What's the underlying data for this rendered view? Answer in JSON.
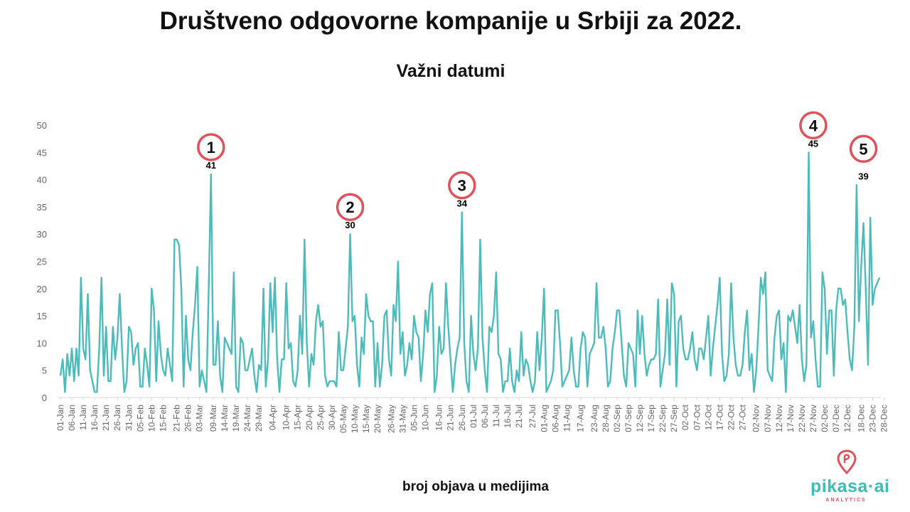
{
  "title": "Društveno odgovorne kompanije u Srbiji za 2022.",
  "subtitle": "Važni datumi",
  "x_caption": "broj objava u medijima",
  "logo": {
    "word": "pikasa·ai",
    "sub": "ANALYTICS",
    "icon": "pikasa-logo-icon"
  },
  "colors": {
    "line": "#4bbcba",
    "marker": "#e0525a",
    "axis": "#d9d9d9",
    "tick_text": "#666666",
    "label_text": "#000000"
  },
  "chart_data": {
    "type": "line",
    "title": "Društveno odgovorne kompanije u Srbiji za 2022.",
    "subtitle": "Važni datumi",
    "xlabel": "broj objava u medijima",
    "ylabel": "",
    "ylim": [
      0,
      50
    ],
    "yticks": [
      0,
      5,
      10,
      15,
      20,
      25,
      30,
      35,
      40,
      45,
      50
    ],
    "grid": false,
    "x_start": "01-Jan",
    "x_end": "31-Dec",
    "x_ticks": [
      "01-Jan",
      "06-Jan",
      "11-Jan",
      "16-Jan",
      "21-Jan",
      "26-Jan",
      "31-Jan",
      "05-Feb",
      "10-Feb",
      "15-Feb",
      "21-Feb",
      "26-Feb",
      "03-Mar",
      "09-Mar",
      "14-Mar",
      "19-Mar",
      "24-Mar",
      "29-Mar",
      "04-Apr",
      "10-Apr",
      "15-Apr",
      "20-Apr",
      "25-Apr",
      "30-Apr",
      "05-May",
      "10-May",
      "15-May",
      "20-May",
      "26-May",
      "31-May",
      "05-Jun",
      "10-Jun",
      "16-Jun",
      "21-Jun",
      "26-Jun",
      "01-Jul",
      "06-Jul",
      "11-Jul",
      "16-Jul",
      "21-Jul",
      "27-Jul",
      "01-Aug",
      "06-Aug",
      "11-Aug",
      "17-Aug",
      "23-Aug",
      "28-Aug",
      "02-Sep",
      "07-Sep",
      "12-Sep",
      "17-Sep",
      "22-Sep",
      "27-Sep",
      "02-Oct",
      "07-Oct",
      "12-Oct",
      "17-Oct",
      "22-Oct",
      "27-Oct",
      "02-Nov",
      "07-Nov",
      "12-Nov",
      "17-Nov",
      "22-Nov",
      "27-Nov",
      "02-Dec",
      "07-Dec",
      "12-Dec",
      "18-Dec",
      "23-Dec",
      "28-Dec"
    ],
    "series": [
      {
        "values": [
          4,
          7,
          1,
          8,
          4,
          9,
          3,
          9,
          4,
          22,
          9,
          7,
          19,
          5,
          3,
          1,
          1,
          9,
          22,
          4,
          13,
          3,
          3,
          13,
          7,
          11,
          19,
          9,
          1,
          3,
          13,
          12,
          6,
          9,
          10,
          2,
          2,
          9,
          6,
          2,
          20,
          16,
          3,
          14,
          8,
          5,
          4,
          9,
          6,
          3,
          29,
          29,
          28,
          20,
          2,
          15,
          7,
          5,
          12,
          17,
          24,
          2,
          5,
          3,
          1,
          20,
          41,
          6,
          6,
          14,
          4,
          1,
          11,
          10,
          9,
          8,
          23,
          2,
          1,
          11,
          10,
          5,
          5,
          7,
          9,
          4,
          1,
          6,
          5,
          20,
          2,
          7,
          21,
          12,
          22,
          7,
          1,
          7,
          7,
          21,
          9,
          10,
          3,
          2,
          5,
          15,
          8,
          29,
          10,
          2,
          8,
          6,
          14,
          17,
          13,
          14,
          4,
          2,
          3,
          3,
          3,
          2,
          12,
          5,
          5,
          9,
          13,
          30,
          14,
          15,
          6,
          2,
          11,
          8,
          19,
          15,
          14,
          14,
          2,
          10,
          2,
          6,
          15,
          16,
          7,
          4,
          17,
          14,
          25,
          8,
          12,
          4,
          6,
          10,
          7,
          15,
          12,
          11,
          3,
          8,
          16,
          12,
          19,
          21,
          1,
          4,
          13,
          8,
          9,
          21,
          13,
          7,
          1,
          6,
          9,
          11,
          34,
          10,
          3,
          1,
          15,
          8,
          5,
          9,
          29,
          11,
          5,
          1,
          13,
          12,
          15,
          23,
          8,
          7,
          1,
          3,
          3,
          9,
          3,
          1,
          5,
          3,
          12,
          4,
          7,
          6,
          3,
          1,
          3,
          12,
          5,
          11,
          20,
          1,
          2,
          3,
          5,
          16,
          16,
          10,
          2,
          3,
          4,
          5,
          11,
          5,
          2,
          2,
          9,
          12,
          11,
          2,
          8,
          9,
          10,
          21,
          11,
          11,
          13,
          9,
          2,
          3,
          9,
          12,
          16,
          16,
          10,
          4,
          2,
          10,
          9,
          8,
          2,
          16,
          8,
          15,
          8,
          4,
          6,
          7,
          7,
          8,
          18,
          2,
          5,
          8,
          18,
          6,
          21,
          19,
          2,
          14,
          15,
          9,
          7,
          7,
          9,
          12,
          7,
          5,
          9,
          9,
          7,
          11,
          15,
          4,
          9,
          13,
          17,
          22,
          8,
          3,
          4,
          8,
          21,
          11,
          6,
          4,
          4,
          6,
          12,
          16,
          5,
          8,
          1,
          5,
          13,
          22,
          19,
          23,
          5,
          4,
          3,
          11,
          15,
          16,
          7,
          10,
          1,
          15,
          14,
          16,
          13,
          10,
          17,
          7,
          3,
          6,
          45,
          11,
          14,
          7,
          2,
          2,
          23,
          20,
          8,
          16,
          16,
          4,
          16,
          20,
          20,
          17,
          18,
          12,
          7,
          5,
          13,
          39,
          14,
          24,
          32,
          20,
          6,
          33,
          17,
          20,
          21,
          22
        ]
      }
    ],
    "annotations": [
      {
        "label": "1",
        "value": 41,
        "day": 66
      },
      {
        "label": "2",
        "value": 30,
        "day": 127
      },
      {
        "label": "3",
        "value": 34,
        "day": 176
      },
      {
        "label": "4",
        "value": 45,
        "day": 330
      },
      {
        "label": "5",
        "value": 39,
        "day": 352
      }
    ]
  }
}
